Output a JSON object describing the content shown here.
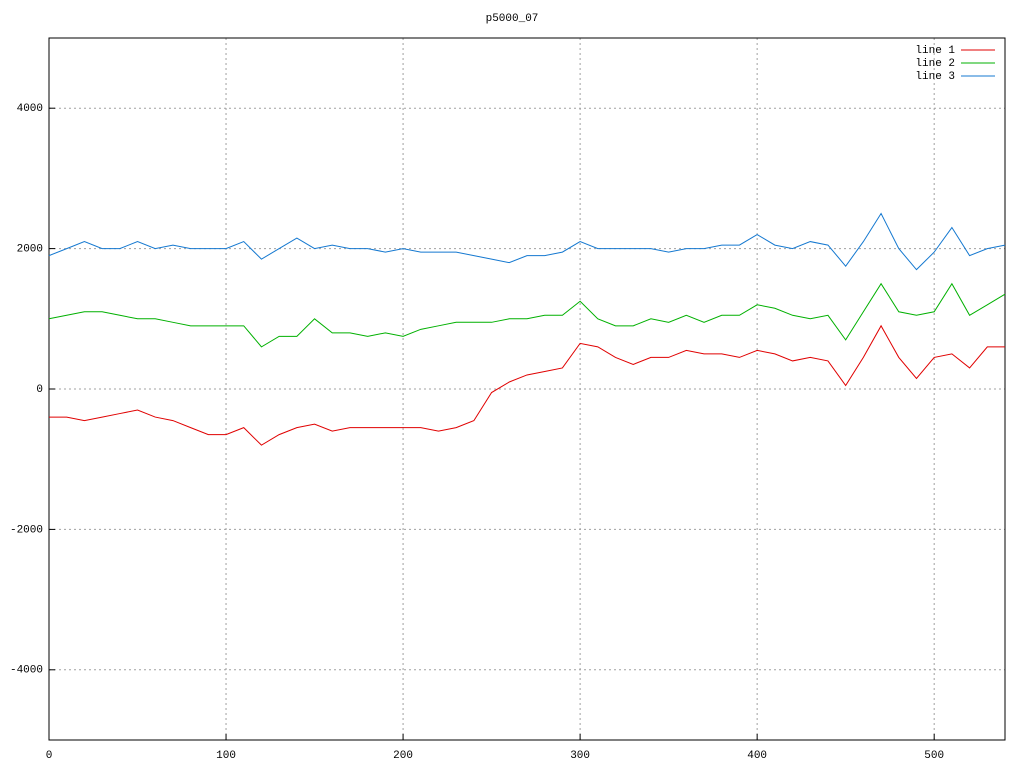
{
  "chart_data": {
    "type": "line",
    "title": "p5000_07",
    "x": [
      0,
      10,
      20,
      30,
      40,
      50,
      60,
      70,
      80,
      90,
      100,
      110,
      120,
      130,
      140,
      150,
      160,
      170,
      180,
      190,
      200,
      210,
      220,
      230,
      240,
      250,
      260,
      270,
      280,
      290,
      300,
      310,
      320,
      330,
      340,
      350,
      360,
      370,
      380,
      390,
      400,
      410,
      420,
      430,
      440,
      450,
      460,
      470,
      480,
      490,
      500,
      510,
      520,
      530,
      540
    ],
    "series": [
      {
        "name": "line 1",
        "color": "#e00000",
        "values": [
          -400,
          -400,
          -450,
          -400,
          -350,
          -300,
          -400,
          -450,
          -550,
          -650,
          -650,
          -550,
          -800,
          -650,
          -550,
          -500,
          -600,
          -550,
          -550,
          -550,
          -550,
          -550,
          -600,
          -550,
          -450,
          -50,
          100,
          200,
          250,
          300,
          650,
          600,
          450,
          350,
          450,
          450,
          550,
          500,
          500,
          450,
          550,
          500,
          400,
          450,
          400,
          50,
          450,
          900,
          450,
          150,
          450,
          500,
          300,
          600,
          600
        ]
      },
      {
        "name": "line 2",
        "color": "#00b000",
        "values": [
          1000,
          1050,
          1100,
          1100,
          1050,
          1000,
          1000,
          950,
          900,
          900,
          900,
          900,
          600,
          750,
          750,
          1000,
          800,
          800,
          750,
          800,
          750,
          850,
          900,
          950,
          950,
          950,
          1000,
          1000,
          1050,
          1050,
          1250,
          1000,
          900,
          900,
          1000,
          950,
          1050,
          950,
          1050,
          1050,
          1200,
          1150,
          1050,
          1000,
          1050,
          700,
          1100,
          1500,
          1100,
          1050,
          1100,
          1500,
          1050,
          1200,
          1350
        ]
      },
      {
        "name": "line 3",
        "color": "#1478d0",
        "values": [
          1900,
          2000,
          2100,
          2000,
          2000,
          2100,
          2000,
          2050,
          2000,
          2000,
          2000,
          2100,
          1850,
          2000,
          2150,
          2000,
          2050,
          2000,
          2000,
          1950,
          2000,
          1950,
          1950,
          1950,
          1900,
          1850,
          1800,
          1900,
          1900,
          1950,
          2100,
          2000,
          2000,
          2000,
          2000,
          1950,
          2000,
          2000,
          2050,
          2050,
          2200,
          2050,
          2000,
          2100,
          2050,
          1750,
          2100,
          2500,
          2000,
          1700,
          1950,
          2300,
          1900,
          2000,
          2050
        ]
      }
    ],
    "xlim": [
      0,
      540
    ],
    "ylim": [
      -5000,
      5000
    ],
    "xticks": [
      0,
      100,
      200,
      300,
      400,
      500
    ],
    "yticks": [
      -4000,
      -2000,
      0,
      2000,
      4000
    ],
    "grid": true,
    "legend": "top-right"
  }
}
